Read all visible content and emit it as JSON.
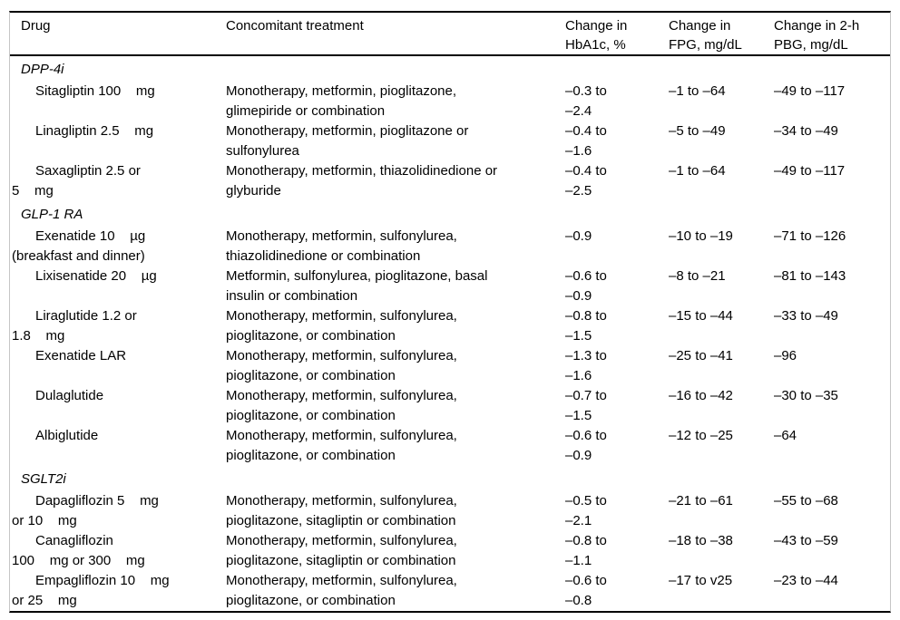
{
  "table": {
    "columns": [
      {
        "label": "Drug"
      },
      {
        "label": "Concomitant treatment"
      },
      {
        "label": "Change in\nHbA1c, %"
      },
      {
        "label": "Change in\nFPG, mg/dL"
      },
      {
        "label": "Change in 2-h\nPBG, mg/dL"
      }
    ],
    "sections": [
      {
        "label": "DPP-4i",
        "rows": [
          {
            "drug": "Sitagliptin 100    mg",
            "treatment": "Monotherapy, metformin, pioglitazone,\nglimepiride or combination",
            "hba1c": "–0.3 to\n–2.4",
            "fpg": "–1 to –64",
            "pbg": "–49 to –117"
          },
          {
            "drug": "Linagliptin 2.5    mg",
            "treatment": "Monotherapy, metformin, pioglitazone or\nsulfonylurea",
            "hba1c": "–0.4 to\n–1.6",
            "fpg": "–5 to –49",
            "pbg": "–34 to –49"
          },
          {
            "drug": "Saxagliptin 2.5 or\n5    mg",
            "treatment": "Monotherapy, metformin, thiazolidinedione or\nglyburide",
            "hba1c": "–0.4 to\n–2.5",
            "fpg": "–1 to –64",
            "pbg": "–49 to –117"
          }
        ]
      },
      {
        "label": "GLP-1 RA",
        "rows": [
          {
            "drug": "Exenatide 10    µg\n(breakfast and dinner)",
            "treatment": "Monotherapy, metformin, sulfonylurea,\nthiazolidinedione or combination",
            "hba1c": "–0.9",
            "fpg": "–10 to –19",
            "pbg": "–71 to –126"
          },
          {
            "drug": "Lixisenatide 20    µg",
            "treatment": "Metformin, sulfonylurea, pioglitazone, basal\ninsulin or combination",
            "hba1c": "–0.6 to\n–0.9",
            "fpg": "–8 to –21",
            "pbg": "–81 to –143"
          },
          {
            "drug": "Liraglutide 1.2 or\n1.8    mg",
            "treatment": "Monotherapy, metformin, sulfonylurea,\npioglitazone, or combination",
            "hba1c": "–0.8 to\n–1.5",
            "fpg": "–15 to –44",
            "pbg": "–33 to –49"
          },
          {
            "drug": "Exenatide LAR",
            "treatment": "Monotherapy, metformin, sulfonylurea,\npioglitazone, or combination",
            "hba1c": "–1.3 to\n–1.6",
            "fpg": "–25 to –41",
            "pbg": "–96"
          },
          {
            "drug": "Dulaglutide",
            "treatment": "Monotherapy, metformin, sulfonylurea,\npioglitazone, or combination",
            "hba1c": "–0.7 to\n–1.5",
            "fpg": "–16 to –42",
            "pbg": "–30 to –35"
          },
          {
            "drug": "Albiglutide",
            "treatment": "Monotherapy, metformin, sulfonylurea,\npioglitazone, or combination",
            "hba1c": "–0.6 to\n–0.9",
            "fpg": "–12 to –25",
            "pbg": "–64"
          }
        ]
      },
      {
        "label": "SGLT2i",
        "rows": [
          {
            "drug": "Dapagliflozin 5    mg\nor 10    mg",
            "treatment": "Monotherapy, metformin, sulfonylurea,\npioglitazone, sitagliptin or combination",
            "hba1c": "–0.5 to\n–2.1",
            "fpg": "–21 to –61",
            "pbg": "–55 to –68"
          },
          {
            "drug": "Canagliflozin\n100    mg or 300    mg",
            "treatment": "Monotherapy, metformin, sulfonylurea,\npioglitazone, sitagliptin or combination",
            "hba1c": "–0.8 to\n–1.1",
            "fpg": "–18 to –38",
            "pbg": "–43 to –59"
          },
          {
            "drug": "Empagliflozin 10    mg\nor 25    mg",
            "treatment": "Monotherapy, metformin, sulfonylurea,\npioglitazone, or combination",
            "hba1c": "–0.6 to\n–0.8",
            "fpg": "–17 to v25",
            "pbg": "–23 to –44"
          }
        ]
      }
    ]
  }
}
